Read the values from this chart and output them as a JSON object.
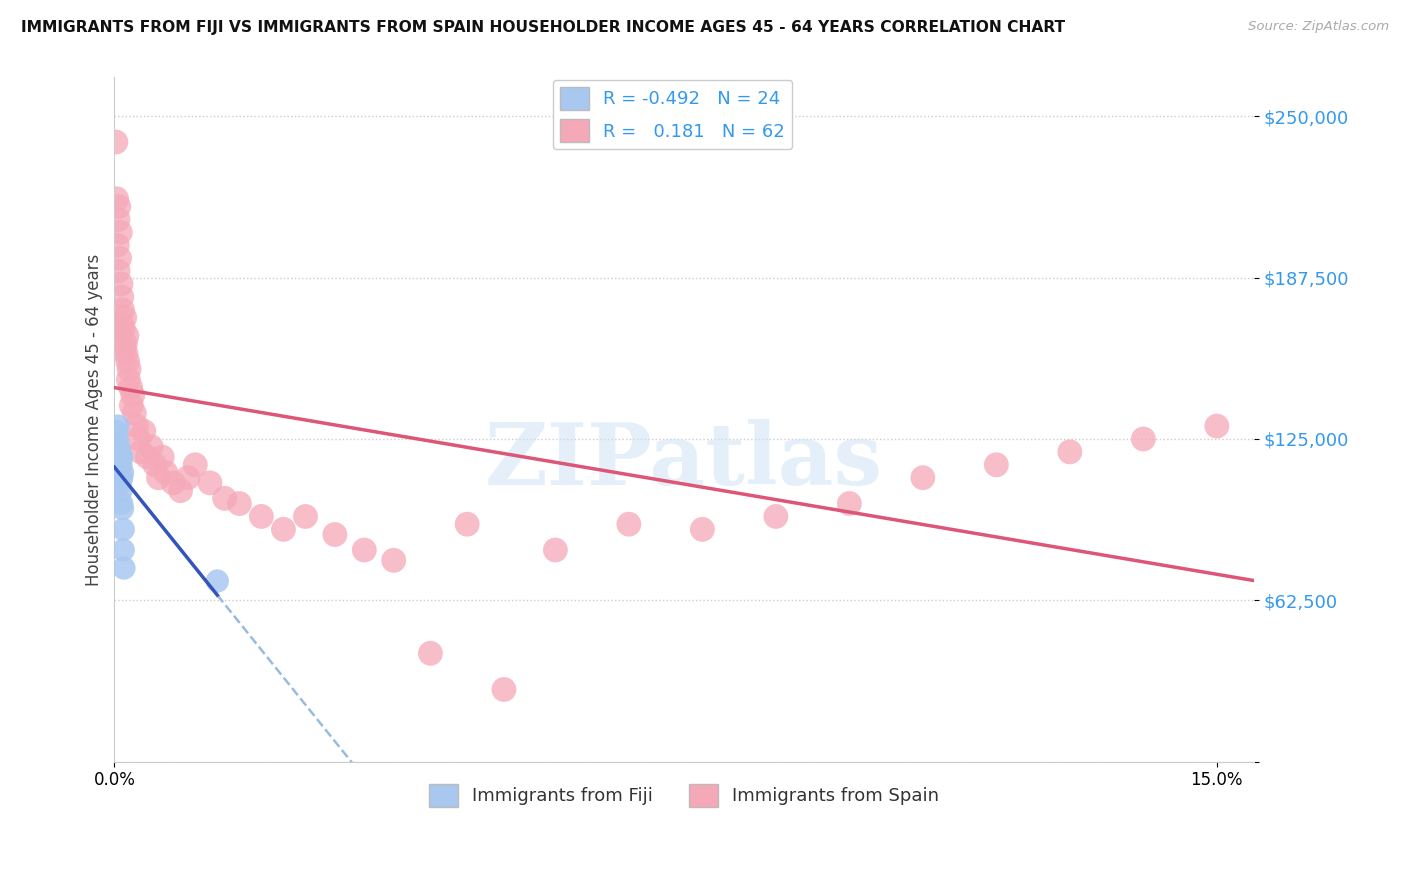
{
  "title": "IMMIGRANTS FROM FIJI VS IMMIGRANTS FROM SPAIN HOUSEHOLDER INCOME AGES 45 - 64 YEARS CORRELATION CHART",
  "source": "Source: ZipAtlas.com",
  "ylabel": "Householder Income Ages 45 - 64 years",
  "ymin": 0,
  "ymax": 265000,
  "xmin": 0.0,
  "xmax": 0.155,
  "fiji_color": "#a8c8f0",
  "fiji_line_color": "#3355bb",
  "spain_color": "#f5a8b8",
  "spain_line_color": "#dd5577",
  "dash_color": "#99bbdd",
  "fiji_R": -0.492,
  "fiji_N": 24,
  "spain_R": 0.181,
  "spain_N": 62,
  "legend_label_fiji": "Immigrants from Fiji",
  "legend_label_spain": "Immigrants from Spain",
  "watermark": "ZIPatlas",
  "fiji_scatter_x": [
    0.0002,
    0.0003,
    0.0004,
    0.0004,
    0.0005,
    0.0005,
    0.0006,
    0.0006,
    0.0006,
    0.0007,
    0.0007,
    0.0008,
    0.0008,
    0.0009,
    0.0009,
    0.001,
    0.001,
    0.001,
    0.0011,
    0.0011,
    0.0012,
    0.0012,
    0.0013,
    0.014
  ],
  "fiji_scatter_y": [
    128000,
    122000,
    125000,
    118000,
    130000,
    120000,
    122000,
    118000,
    110000,
    120000,
    112000,
    118000,
    108000,
    115000,
    105000,
    118000,
    110000,
    100000,
    112000,
    98000,
    90000,
    82000,
    75000,
    70000
  ],
  "spain_scatter_x": [
    0.0002,
    0.0003,
    0.0004,
    0.0005,
    0.0005,
    0.0006,
    0.0007,
    0.0008,
    0.0009,
    0.0009,
    0.001,
    0.001,
    0.0011,
    0.0012,
    0.0013,
    0.0014,
    0.0015,
    0.0016,
    0.0017,
    0.0018,
    0.0019,
    0.002,
    0.0022,
    0.0023,
    0.0025,
    0.0027,
    0.003,
    0.0033,
    0.0036,
    0.004,
    0.0045,
    0.005,
    0.0055,
    0.006,
    0.0065,
    0.007,
    0.008,
    0.009,
    0.01,
    0.011,
    0.013,
    0.015,
    0.017,
    0.02,
    0.023,
    0.026,
    0.03,
    0.034,
    0.038,
    0.043,
    0.048,
    0.053,
    0.06,
    0.07,
    0.08,
    0.09,
    0.1,
    0.11,
    0.12,
    0.13,
    0.14,
    0.15
  ],
  "spain_scatter_y": [
    240000,
    218000,
    200000,
    210000,
    190000,
    215000,
    195000,
    205000,
    185000,
    170000,
    180000,
    168000,
    175000,
    168000,
    160000,
    172000,
    162000,
    158000,
    165000,
    155000,
    148000,
    152000,
    145000,
    138000,
    142000,
    135000,
    130000,
    125000,
    120000,
    128000,
    118000,
    122000,
    115000,
    110000,
    118000,
    112000,
    108000,
    105000,
    110000,
    115000,
    108000,
    102000,
    100000,
    95000,
    90000,
    95000,
    88000,
    82000,
    78000,
    42000,
    92000,
    28000,
    82000,
    92000,
    90000,
    95000,
    100000,
    110000,
    115000,
    120000,
    125000,
    130000
  ]
}
